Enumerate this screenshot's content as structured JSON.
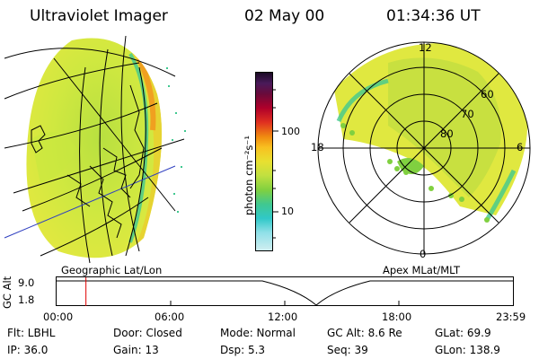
{
  "header": {
    "instrument": "Ultraviolet Imager",
    "date": "02 May 00",
    "time": "01:34:36 UT"
  },
  "geo_panel": {
    "caption": "Geographic Lat/Lon"
  },
  "polar_panel": {
    "caption": "Apex MLat/MLT",
    "mlt_labels": [
      "12",
      "18",
      "6",
      "0"
    ],
    "lat_labels": [
      "60",
      "70",
      "80"
    ]
  },
  "colorbar": {
    "unit_label": "photon cm⁻²s⁻¹",
    "ticks": [
      "100",
      "10"
    ],
    "colors": [
      "#1a0a24",
      "#4a1a5a",
      "#6a0a3a",
      "#b0002a",
      "#e03020",
      "#f08a10",
      "#f8c020",
      "#e8e030",
      "#c0e040",
      "#80d040",
      "#40c890",
      "#30c8c8",
      "#90e0e8",
      "#d0eef0"
    ]
  },
  "orbit_strip": {
    "ylabel": "GC Alt",
    "ymax": "9.0",
    "ymin": "1.8",
    "x_ticks": [
      "00:00",
      "06:00",
      "12:00",
      "18:00",
      "23:59"
    ],
    "marker_time_fraction": 0.066,
    "marker_color": "#e00000"
  },
  "info": {
    "row1": {
      "filter": "Flt: LBHL",
      "door": "Door: Closed",
      "mode": "Mode: Normal",
      "gc_alt": "GC Alt: 8.6 Re",
      "glat": "GLat:  69.9"
    },
    "row2": {
      "ip": "IP: 36.0",
      "gain": "Gain: 13",
      "dsp": "Dsp:    5.3",
      "seq": "Seq: 39",
      "glon": "GLon: 138.9"
    }
  }
}
